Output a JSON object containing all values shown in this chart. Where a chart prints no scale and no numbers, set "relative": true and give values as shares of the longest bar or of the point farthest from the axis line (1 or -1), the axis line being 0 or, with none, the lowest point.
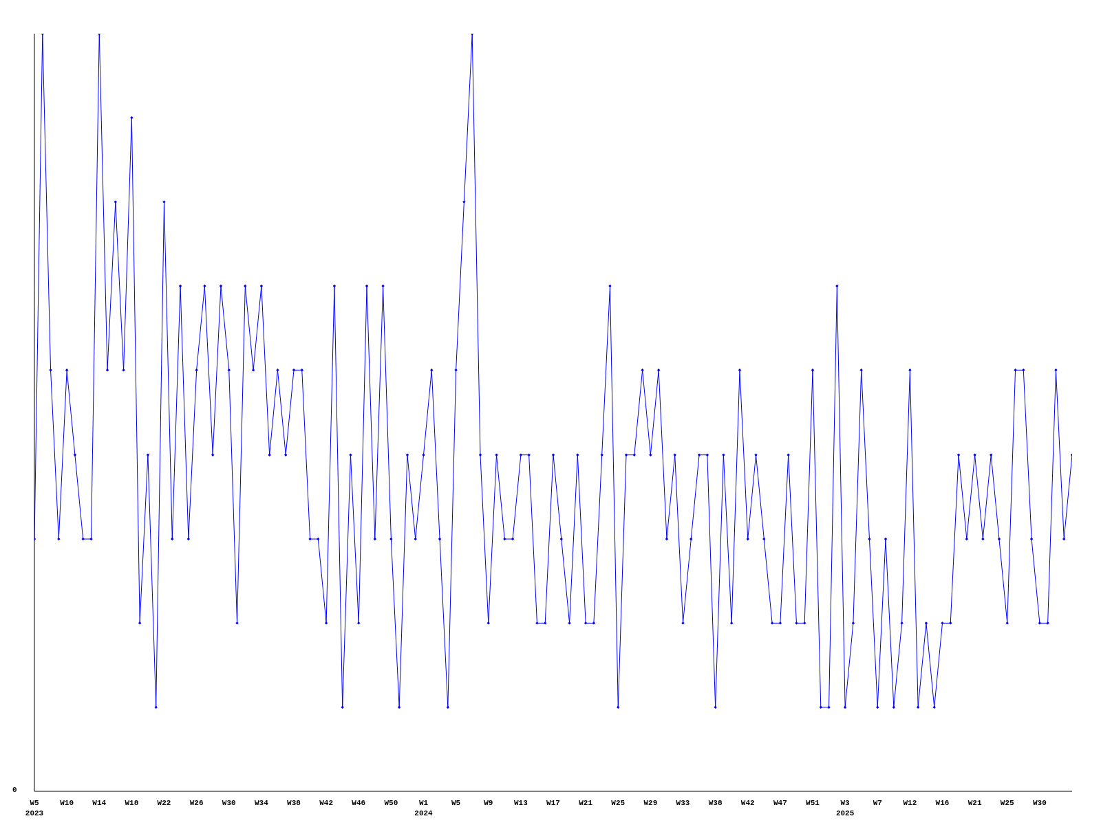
{
  "chart_data": {
    "type": "line",
    "relative": true,
    "categories": [
      "W5\n2023",
      null,
      null,
      null,
      "W10",
      null,
      null,
      null,
      "W14",
      null,
      null,
      null,
      "W18",
      null,
      null,
      null,
      "W22",
      null,
      null,
      null,
      "W26",
      null,
      null,
      null,
      "W30",
      null,
      null,
      null,
      "W34",
      null,
      null,
      null,
      "W38",
      null,
      null,
      null,
      "W42",
      null,
      null,
      null,
      "W46",
      null,
      null,
      null,
      "W50",
      null,
      null,
      null,
      "W1\n2024",
      null,
      null,
      null,
      "W5",
      null,
      null,
      null,
      "W9",
      null,
      null,
      null,
      "W13",
      null,
      null,
      null,
      "W17",
      null,
      null,
      null,
      "W21",
      null,
      null,
      null,
      "W25",
      null,
      null,
      null,
      "W29",
      null,
      null,
      null,
      "W33",
      null,
      null,
      null,
      "W38",
      null,
      null,
      null,
      "W42",
      null,
      null,
      null,
      "W47",
      null,
      null,
      null,
      "W51",
      null,
      null,
      null,
      "W3\n2025",
      null,
      null,
      null,
      "W7",
      null,
      null,
      null,
      "W12",
      null,
      null,
      null,
      "W16",
      null,
      null,
      null,
      "W21",
      null,
      null,
      null,
      "W25",
      null,
      null,
      null,
      "W30",
      null,
      null,
      null,
      null
    ],
    "series": [
      {
        "color": "#0000ff",
        "values": [
          0.333,
          1,
          0.556,
          0.333,
          0.556,
          0.444,
          0.333,
          0.333,
          1,
          0.556,
          0.778,
          0.556,
          0.889,
          0.222,
          0.444,
          0.111,
          0.778,
          0.333,
          0.667,
          0.333,
          0.556,
          0.667,
          0.444,
          0.667,
          0.556,
          0.222,
          0.667,
          0.556,
          0.667,
          0.444,
          0.556,
          0.444,
          0.556,
          0.556,
          0.333,
          0.333,
          0.222,
          0.667,
          0.111,
          0.444,
          0.222,
          0.667,
          0.333,
          0.667,
          0.333,
          0.111,
          0.444,
          0.333,
          0.444,
          0.556,
          0.333,
          0.111,
          0.556,
          0.778,
          1,
          0.444,
          0.222,
          0.444,
          0.333,
          0.333,
          0.444,
          0.444,
          0.222,
          0.222,
          0.444,
          0.333,
          0.222,
          0.444,
          0.222,
          0.222,
          0.444,
          0.667,
          0.111,
          0.444,
          0.444,
          0.556,
          0.444,
          0.556,
          0.333,
          0.444,
          0.222,
          0.333,
          0.444,
          0.444,
          0.111,
          0.444,
          0.222,
          0.556,
          0.333,
          0.444,
          0.333,
          0.222,
          0.222,
          0.444,
          0.222,
          0.222,
          0.556,
          0.111,
          0.111,
          0.667,
          0.111,
          0.222,
          0.556,
          0.333,
          0.111,
          0.333,
          0.111,
          0.222,
          0.556,
          0.111,
          0.222,
          0.111,
          0.222,
          0.222,
          0.444,
          0.333,
          0.444,
          0.333,
          0.444,
          0.333,
          0.222,
          0.556,
          0.556,
          0.333,
          0.222,
          0.222,
          0.556,
          0.333,
          0.444
        ]
      }
    ],
    "annotations": [
      "0"
    ],
    "marker": "diamond",
    "grid": false,
    "legend": false
  }
}
